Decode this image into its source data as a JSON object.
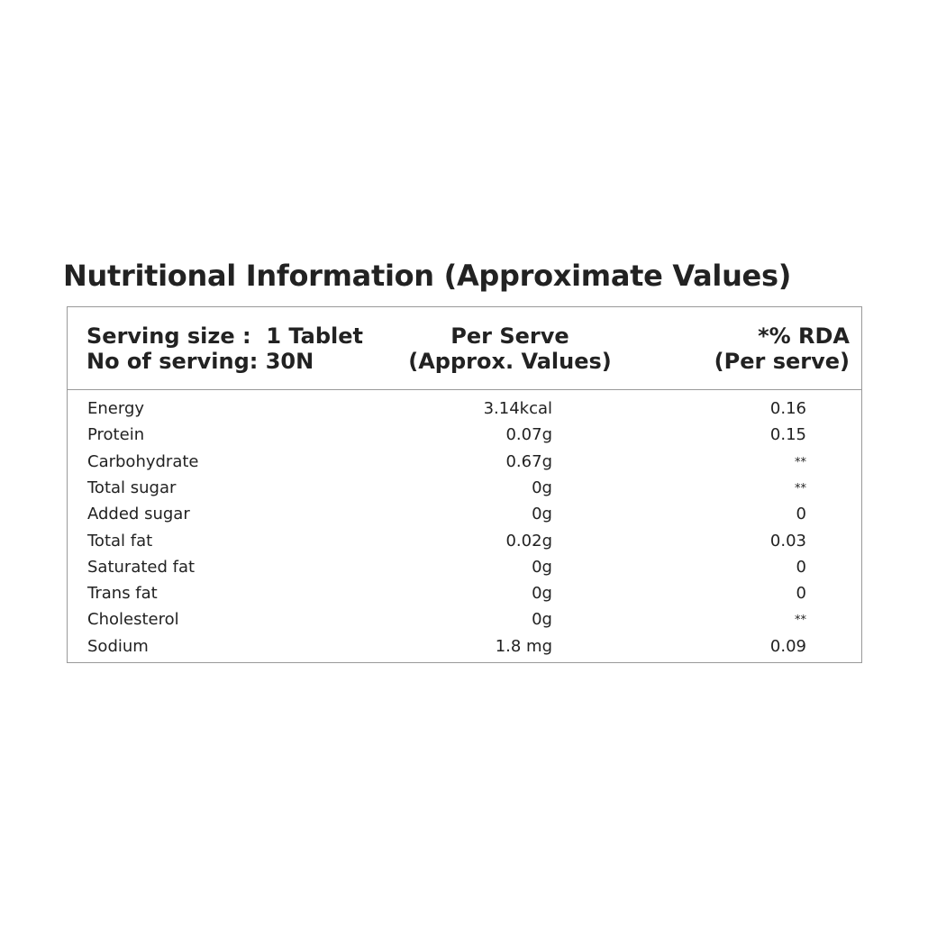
{
  "header": {
    "title": "Nutritional Information (Approximate Values)"
  },
  "table": {
    "columns": [
      [
        "Serving size :  1 Tablet",
        "No of serving: 30N"
      ],
      [
        "Per Serve",
        "(Approx. Values)"
      ],
      [
        "*% RDA",
        "(Per serve)"
      ]
    ],
    "rows": [
      [
        "Energy",
        "3.14kcal",
        "0.16"
      ],
      [
        "Protein",
        "0.07g",
        "0.15"
      ],
      [
        "Carbohydrate",
        "0.67g",
        "**"
      ],
      [
        "Total sugar",
        "0g",
        "**"
      ],
      [
        "Added sugar",
        "0g",
        "0"
      ],
      [
        "Total fat",
        "0.02g",
        "0.03"
      ],
      [
        "Saturated fat",
        "0g",
        "0"
      ],
      [
        "Trans fat",
        "0g",
        "0"
      ],
      [
        "Cholesterol",
        "0g",
        "**"
      ],
      [
        "Sodium",
        "1.8 mg",
        "0.09"
      ]
    ]
  }
}
